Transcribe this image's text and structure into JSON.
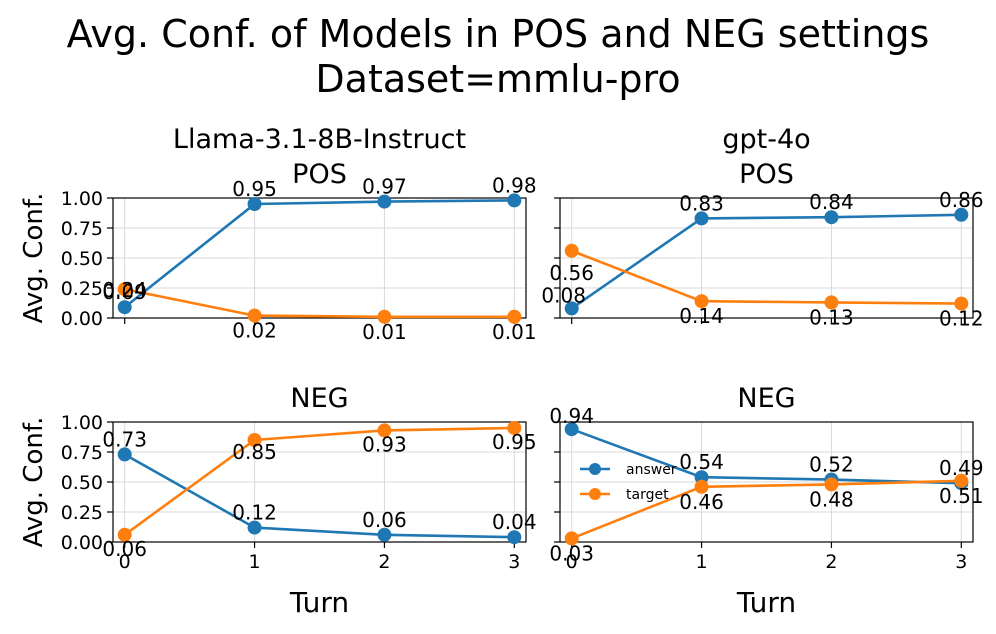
{
  "figure": {
    "title_line1": "Avg. Conf. of Models in POS and NEG settings",
    "title_line2": "Dataset=mmlu-pro"
  },
  "colors": {
    "answer": "#1f77b4",
    "target": "#ff7f0e"
  },
  "chart_data": [
    {
      "type": "line",
      "model": "Llama-3.1-8B-Instruct",
      "setting": "POS",
      "title": "Llama-3.1-8B-Instruct\nPOS",
      "x": [
        0,
        1,
        2,
        3
      ],
      "xticks": [
        "0",
        "1",
        "2",
        "3"
      ],
      "ylim": [
        0,
        1
      ],
      "yticks": [
        "0.00",
        "0.25",
        "0.50",
        "0.75",
        "1.00"
      ],
      "ylabel": "Avg. Conf.",
      "xlabel": "",
      "grid": true,
      "series": [
        {
          "name": "answer",
          "values": [
            0.09,
            0.95,
            0.97,
            0.98
          ],
          "labels": [
            "0.09",
            "0.95",
            "0.97",
            "0.98"
          ]
        },
        {
          "name": "target",
          "values": [
            0.24,
            0.02,
            0.01,
            0.01
          ],
          "labels": [
            "0.24",
            "0.02",
            "0.01",
            "0.01"
          ]
        }
      ]
    },
    {
      "type": "line",
      "model": "gpt-4o",
      "setting": "POS",
      "title": "gpt-4o\nPOS",
      "x": [
        0,
        1,
        2,
        3
      ],
      "xticks": [
        "0",
        "1",
        "2",
        "3"
      ],
      "ylim": [
        0,
        1
      ],
      "yticks": [
        "0.00",
        "0.25",
        "0.50",
        "0.75",
        "1.00"
      ],
      "ylabel": "",
      "xlabel": "",
      "grid": true,
      "series": [
        {
          "name": "answer",
          "values": [
            0.08,
            0.83,
            0.84,
            0.86
          ],
          "labels": [
            "0.08",
            "0.83",
            "0.84",
            "0.86"
          ]
        },
        {
          "name": "target",
          "values": [
            0.56,
            0.14,
            0.13,
            0.12
          ],
          "labels": [
            "0.56",
            "0.14",
            "0.13",
            "0.12"
          ]
        }
      ]
    },
    {
      "type": "line",
      "model": "Llama-3.1-8B-Instruct",
      "setting": "NEG",
      "title": "NEG",
      "x": [
        0,
        1,
        2,
        3
      ],
      "xticks": [
        "0",
        "1",
        "2",
        "3"
      ],
      "ylim": [
        0,
        1
      ],
      "yticks": [
        "0.00",
        "0.25",
        "0.50",
        "0.75",
        "1.00"
      ],
      "ylabel": "Avg. Conf.",
      "xlabel": "Turn",
      "grid": true,
      "series": [
        {
          "name": "answer",
          "values": [
            0.73,
            0.12,
            0.06,
            0.04
          ],
          "labels": [
            "0.73",
            "0.12",
            "0.06",
            "0.04"
          ]
        },
        {
          "name": "target",
          "values": [
            0.06,
            0.85,
            0.93,
            0.95
          ],
          "labels": [
            "0.06",
            "0.85",
            "0.93",
            "0.95"
          ]
        }
      ]
    },
    {
      "type": "line",
      "model": "gpt-4o",
      "setting": "NEG",
      "title": "NEG",
      "x": [
        0,
        1,
        2,
        3
      ],
      "xticks": [
        "0",
        "1",
        "2",
        "3"
      ],
      "ylim": [
        0,
        1
      ],
      "yticks": [
        "0.00",
        "0.25",
        "0.50",
        "0.75",
        "1.00"
      ],
      "ylabel": "",
      "xlabel": "Turn",
      "grid": true,
      "legend": {
        "placement": "center-left",
        "entries": [
          "answer",
          "target"
        ]
      },
      "series": [
        {
          "name": "answer",
          "values": [
            0.94,
            0.54,
            0.52,
            0.49
          ],
          "labels": [
            "0.94",
            "0.54",
            "0.52",
            "0.49"
          ]
        },
        {
          "name": "target",
          "values": [
            0.03,
            0.46,
            0.48,
            0.51
          ],
          "labels": [
            "0.03",
            "0.46",
            "0.48",
            "0.51"
          ]
        }
      ]
    }
  ]
}
